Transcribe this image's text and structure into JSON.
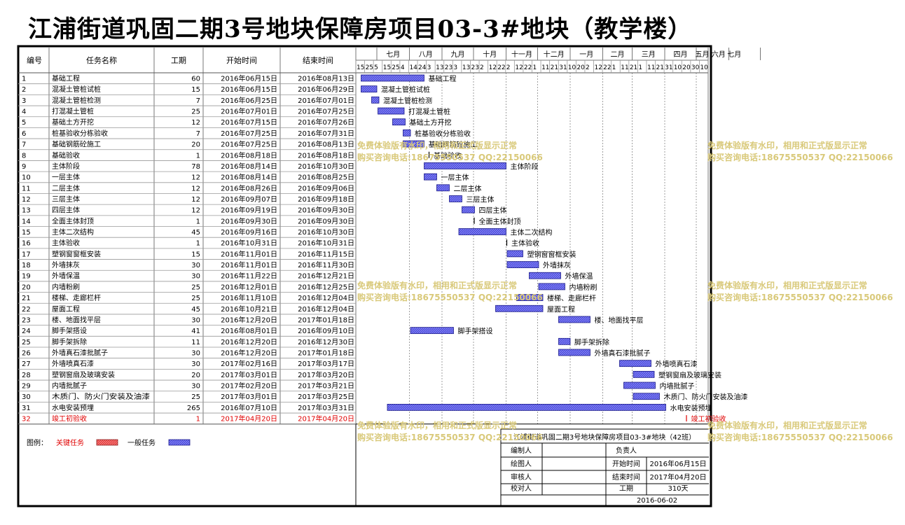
{
  "title": "江浦街道巩固二期3号地块保障房项目03-3#地块（教学楼）",
  "colors": {
    "critical": "#e03a3a",
    "normal": "#4b4bd9",
    "critical_text": "#e00000"
  },
  "table": {
    "headers": [
      "编号",
      "任务名称",
      "工期",
      "开始时间",
      "结束时间"
    ]
  },
  "timescale": {
    "months": [
      "七月",
      "八月",
      "九月",
      "十月",
      "十一月",
      "十二月",
      "一月",
      "二月",
      "三月",
      "四月",
      "五月",
      "六月",
      "七月"
    ],
    "days": [
      "15",
      "25",
      "5",
      "15",
      "25",
      "4",
      "14",
      "24",
      "3",
      "13",
      "23",
      "3",
      "13",
      "23",
      "2",
      "12",
      "22",
      "2",
      "12",
      "22",
      "1",
      "11",
      "21",
      "31",
      "10",
      "20",
      "2",
      "12",
      "22",
      "1",
      "11",
      "21",
      "1",
      "11",
      "21",
      "31",
      "10",
      "20",
      "30",
      "10"
    ]
  },
  "chart_data": {
    "type": "gantt",
    "tasks": [
      {
        "id": "1",
        "name": "基础工程",
        "duration": "60",
        "start": "2016年06月15日",
        "end": "2016年08月13日",
        "start_date": "2016-06-15",
        "end_date": "2016-08-13",
        "critical": false
      },
      {
        "id": "2",
        "name": "混凝土管桩试桩",
        "duration": "15",
        "start": "2016年06月15日",
        "end": "2016年06月29日",
        "start_date": "2016-06-15",
        "end_date": "2016-06-29",
        "critical": false
      },
      {
        "id": "3",
        "name": "混凝土管桩检测",
        "duration": "7",
        "start": "2016年06月25日",
        "end": "2016年07月01日",
        "start_date": "2016-06-25",
        "end_date": "2016-07-01",
        "critical": false
      },
      {
        "id": "4",
        "name": "打混凝土管桩",
        "duration": "25",
        "start": "2016年07月01日",
        "end": "2016年07月25日",
        "start_date": "2016-07-01",
        "end_date": "2016-07-25",
        "critical": false
      },
      {
        "id": "5",
        "name": "基础土方开挖",
        "duration": "12",
        "start": "2016年07月15日",
        "end": "2016年07月26日",
        "start_date": "2016-07-15",
        "end_date": "2016-07-26",
        "critical": false
      },
      {
        "id": "6",
        "name": "桩基验收分栋验收",
        "duration": "7",
        "start": "2016年07月25日",
        "end": "2016年07月31日",
        "start_date": "2016-07-25",
        "end_date": "2016-07-31",
        "critical": false
      },
      {
        "id": "7",
        "name": "基础钢筋砼施工",
        "duration": "20",
        "start": "2016年07月25日",
        "end": "2016年08月13日",
        "start_date": "2016-07-25",
        "end_date": "2016-08-13",
        "critical": false
      },
      {
        "id": "8",
        "name": "基础验收",
        "duration": "1",
        "start": "2016年08月18日",
        "end": "2016年08月18日",
        "start_date": "2016-08-18",
        "end_date": "2016-08-18",
        "critical": false
      },
      {
        "id": "9",
        "name": "主体阶段",
        "duration": "78",
        "start": "2016年08月14日",
        "end": "2016年10月30日",
        "start_date": "2016-08-14",
        "end_date": "2016-10-30",
        "critical": false
      },
      {
        "id": "10",
        "name": "一层主体",
        "duration": "12",
        "start": "2016年08月14日",
        "end": "2016年08月25日",
        "start_date": "2016-08-14",
        "end_date": "2016-08-25",
        "critical": false
      },
      {
        "id": "11",
        "name": "二层主体",
        "duration": "12",
        "start": "2016年08月26日",
        "end": "2016年09月06日",
        "start_date": "2016-08-26",
        "end_date": "2016-09-06",
        "critical": false
      },
      {
        "id": "12",
        "name": "三层主体",
        "duration": "12",
        "start": "2016年09月07日",
        "end": "2016年09月18日",
        "start_date": "2016-09-07",
        "end_date": "2016-09-18",
        "critical": false
      },
      {
        "id": "13",
        "name": "四层主体",
        "duration": "12",
        "start": "2016年09月19日",
        "end": "2016年09月30日",
        "start_date": "2016-09-19",
        "end_date": "2016-09-30",
        "critical": false
      },
      {
        "id": "14",
        "name": "全面主体封顶",
        "duration": "1",
        "start": "2016年09月30日",
        "end": "2016年09月30日",
        "start_date": "2016-09-30",
        "end_date": "2016-09-30",
        "critical": false
      },
      {
        "id": "15",
        "name": "主体二次结构",
        "duration": "45",
        "start": "2016年09月16日",
        "end": "2016年10月30日",
        "start_date": "2016-09-16",
        "end_date": "2016-10-30",
        "critical": false
      },
      {
        "id": "16",
        "name": "主体验收",
        "duration": "1",
        "start": "2016年10月31日",
        "end": "2016年10月31日",
        "start_date": "2016-10-31",
        "end_date": "2016-10-31",
        "critical": false
      },
      {
        "id": "17",
        "name": "塑钢窗窗框安装",
        "duration": "15",
        "start": "2016年11月01日",
        "end": "2016年11月15日",
        "start_date": "2016-11-01",
        "end_date": "2016-11-15",
        "critical": false
      },
      {
        "id": "18",
        "name": "外墙抹灰",
        "duration": "30",
        "start": "2016年11月01日",
        "end": "2016年11月30日",
        "start_date": "2016-11-01",
        "end_date": "2016-11-30",
        "critical": false
      },
      {
        "id": "19",
        "name": "外墙保温",
        "duration": "30",
        "start": "2016年11月22日",
        "end": "2016年12月21日",
        "start_date": "2016-11-22",
        "end_date": "2016-12-21",
        "critical": false
      },
      {
        "id": "20",
        "name": "内墙粉刷",
        "duration": "25",
        "start": "2016年12月01日",
        "end": "2016年12月25日",
        "start_date": "2016-12-01",
        "end_date": "2016-12-25",
        "critical": false
      },
      {
        "id": "21",
        "name": "楼梯、走廊栏杆",
        "duration": "25",
        "start": "2016年11月10日",
        "end": "2016年12月04日",
        "start_date": "2016-11-10",
        "end_date": "2016-12-04",
        "critical": false
      },
      {
        "id": "22",
        "name": "屋面工程",
        "duration": "45",
        "start": "2016年10月21日",
        "end": "2016年12月04日",
        "start_date": "2016-10-21",
        "end_date": "2016-12-04",
        "critical": false
      },
      {
        "id": "23",
        "name": "楼、地面找平层",
        "duration": "30",
        "start": "2016年12月20日",
        "end": "2017年01月18日",
        "start_date": "2016-12-20",
        "end_date": "2017-01-18",
        "critical": false
      },
      {
        "id": "24",
        "name": "脚手架搭设",
        "duration": "41",
        "start": "2016年08月01日",
        "end": "2016年09月10日",
        "start_date": "2016-08-01",
        "end_date": "2016-09-10",
        "critical": false
      },
      {
        "id": "25",
        "name": "脚手架拆除",
        "duration": "11",
        "start": "2016年12月20日",
        "end": "2016年12月30日",
        "start_date": "2016-12-20",
        "end_date": "2016-12-30",
        "critical": false
      },
      {
        "id": "26",
        "name": "外墙真石漆批腻子",
        "duration": "30",
        "start": "2016年12月20日",
        "end": "2017年01月18日",
        "start_date": "2016-12-20",
        "end_date": "2017-01-18",
        "critical": false
      },
      {
        "id": "27",
        "name": "外墙喷真石漆",
        "duration": "30",
        "start": "2017年02月16日",
        "end": "2017年03月17日",
        "start_date": "2017-02-16",
        "end_date": "2017-03-17",
        "critical": false
      },
      {
        "id": "28",
        "name": "塑钢窗扇及玻璃安装",
        "duration": "20",
        "start": "2017年03月01日",
        "end": "2017年03月20日",
        "start_date": "2017-03-01",
        "end_date": "2017-03-20",
        "critical": false
      },
      {
        "id": "29",
        "name": "内墙批腻子",
        "duration": "30",
        "start": "2017年02月20日",
        "end": "2017年03月21日",
        "start_date": "2017-02-20",
        "end_date": "2017-03-21",
        "critical": false
      },
      {
        "id": "30",
        "name": "木质门、防火门安装及油漆",
        "duration": "25",
        "start": "2017年03月01日",
        "end": "2017年03月25日",
        "start_date": "2017-03-01",
        "end_date": "2017-03-25",
        "critical": false
      },
      {
        "id": "31",
        "name": "水电安装预埋",
        "duration": "265",
        "start": "2016年07月10日",
        "end": "2017年03月31日",
        "start_date": "2016-07-10",
        "end_date": "2017-03-31",
        "critical": false
      },
      {
        "id": "32",
        "name": "竣工初验收",
        "duration": "1",
        "start": "2017年04月20日",
        "end": "2017年04月20日",
        "start_date": "2017-04-20",
        "end_date": "2017-04-20",
        "critical": true
      }
    ]
  },
  "legend": {
    "label": "图例：",
    "critical": "关键任务",
    "normal": "一般任务"
  },
  "watermark": {
    "line1": "免费体验版有水印，相用和正式版显示正常",
    "line2": "购买咨询电话:18675550537 QQ:22150066"
  },
  "info": {
    "project": "江浦街道巩固二期3号地块保障房项目03-3#地块（42班）",
    "editor_label": "编制人",
    "owner_label": "负责人",
    "drawer_label": "绘图人",
    "start_label": "开始时间",
    "start_value": "2016年06月15日",
    "reviewer_label": "审核人",
    "end_label": "结束时间",
    "end_value": "2017年04月20日",
    "checker_label": "校对人",
    "duration_label": "工期",
    "duration_value": "310天",
    "date": "2016-06-02"
  }
}
